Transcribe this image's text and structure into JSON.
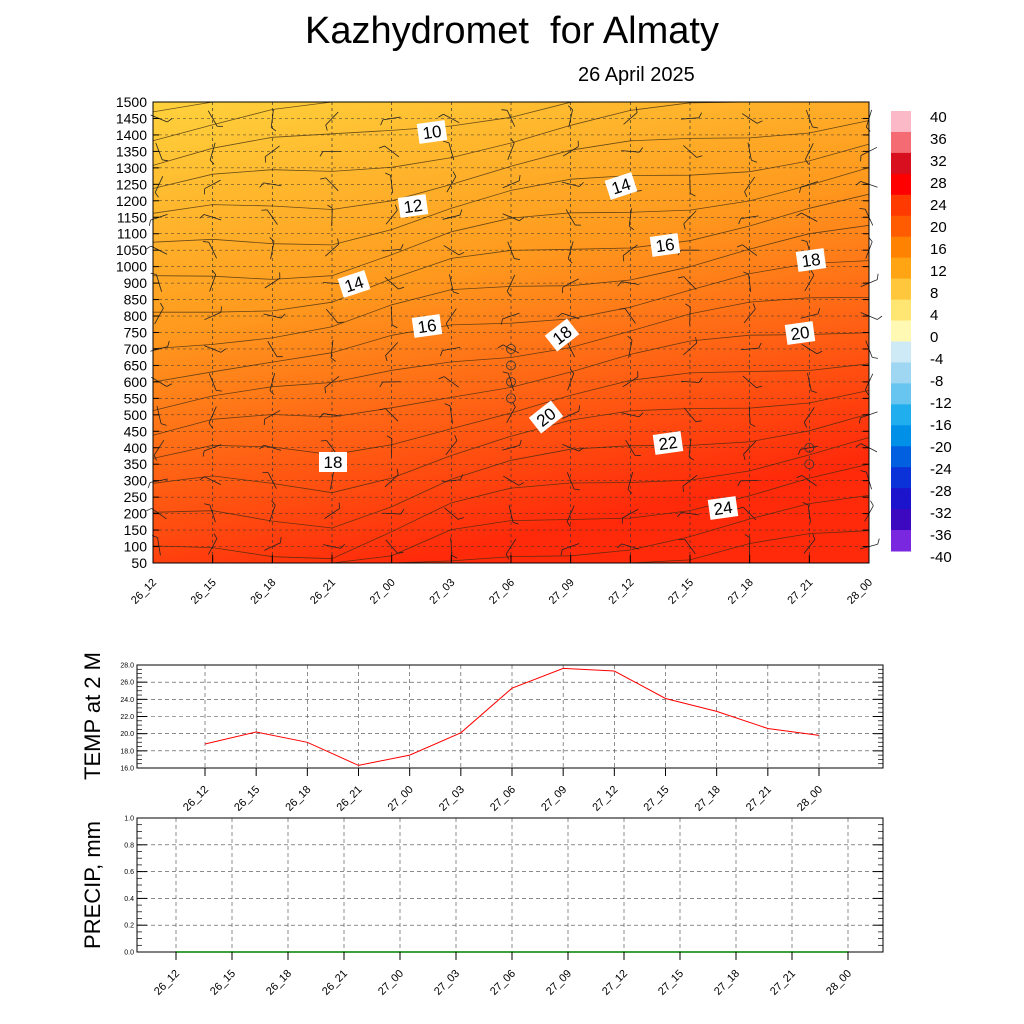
{
  "title": "Kazhydromet  for Almaty",
  "subtitle": "26 April 2025",
  "colors": {
    "temperature_line": "#ff0000",
    "precip_line": "#008000",
    "field_cool": "#ffd23c",
    "field_warm": "#ff2a0a"
  },
  "chart_data": [
    {
      "id": "cross-section",
      "type": "heatmap",
      "description_of_fields": "shaded temperature with temperature contours and wind barbs",
      "x_ticks": [
        "26_12",
        "26_15",
        "26_18",
        "26_21",
        "27_00",
        "27_03",
        "27_06",
        "27_09",
        "27_12",
        "27_15",
        "27_18",
        "27_21",
        "28_00"
      ],
      "y_ticks": [
        "1500",
        "1450",
        "1400",
        "1350",
        "1300",
        "1250",
        "1200",
        "1150",
        "1100",
        "1050",
        "1000",
        "900",
        "850",
        "800",
        "750",
        "700",
        "650",
        "600",
        "550",
        "500",
        "450",
        "400",
        "350",
        "300",
        "250",
        "200",
        "150",
        "100",
        "50"
      ],
      "colorbar": {
        "labels": [
          "40",
          "36",
          "32",
          "28",
          "24",
          "20",
          "16",
          "12",
          "8",
          "4",
          "0",
          "-4",
          "-8",
          "-12",
          "-16",
          "-20",
          "-24",
          "-28",
          "-32",
          "-36",
          "-40"
        ],
        "colors": [
          "#fbb8c6",
          "#f46b74",
          "#d70f1e",
          "#ff0000",
          "#ff3a00",
          "#ff5c00",
          "#ff8200",
          "#ffa514",
          "#ffc83c",
          "#ffe673",
          "#fff9b4",
          "#cfeaf7",
          "#9fd6f2",
          "#67c5f0",
          "#20aeef",
          "#0090e8",
          "#0060e0",
          "#0a32d8",
          "#1c14cc",
          "#3c08c0",
          "#7a28e0"
        ]
      },
      "contour_labels": [
        "10",
        "12",
        "14",
        "14",
        "16",
        "16",
        "18",
        "18",
        "18",
        "20",
        "20",
        "22",
        "24"
      ],
      "grid": true
    },
    {
      "id": "temp-2m",
      "type": "line",
      "ylabel": "TEMP at 2 M",
      "ylim": [
        16.0,
        28.0
      ],
      "y_ticks": [
        "28.0",
        "26.0",
        "24.0",
        "22.0",
        "20.0",
        "18.0",
        "16.0"
      ],
      "x": [
        "26_12",
        "26_15",
        "26_18",
        "26_21",
        "27_00",
        "27_03",
        "27_06",
        "27_09",
        "27_12",
        "27_15",
        "27_18",
        "27_21",
        "28_00"
      ],
      "values": [
        18.8,
        20.2,
        19.0,
        16.3,
        17.5,
        20.1,
        25.3,
        27.6,
        27.3,
        24.1,
        22.6,
        20.6,
        19.8
      ],
      "grid": true
    },
    {
      "id": "precip",
      "type": "line",
      "ylabel": "PRECIP, mm",
      "ylim": [
        0.0,
        1.0
      ],
      "y_ticks": [
        "1.0",
        "0.8",
        "0.6",
        "0.4",
        "0.2",
        "0.0"
      ],
      "x": [
        "26_12",
        "26_15",
        "26_18",
        "26_21",
        "27_00",
        "27_03",
        "27_06",
        "27_09",
        "27_12",
        "27_15",
        "27_18",
        "27_21",
        "28_00"
      ],
      "values": [
        0,
        0,
        0,
        0,
        0,
        0,
        0,
        0,
        0,
        0,
        0,
        0,
        0
      ],
      "grid": true
    }
  ]
}
